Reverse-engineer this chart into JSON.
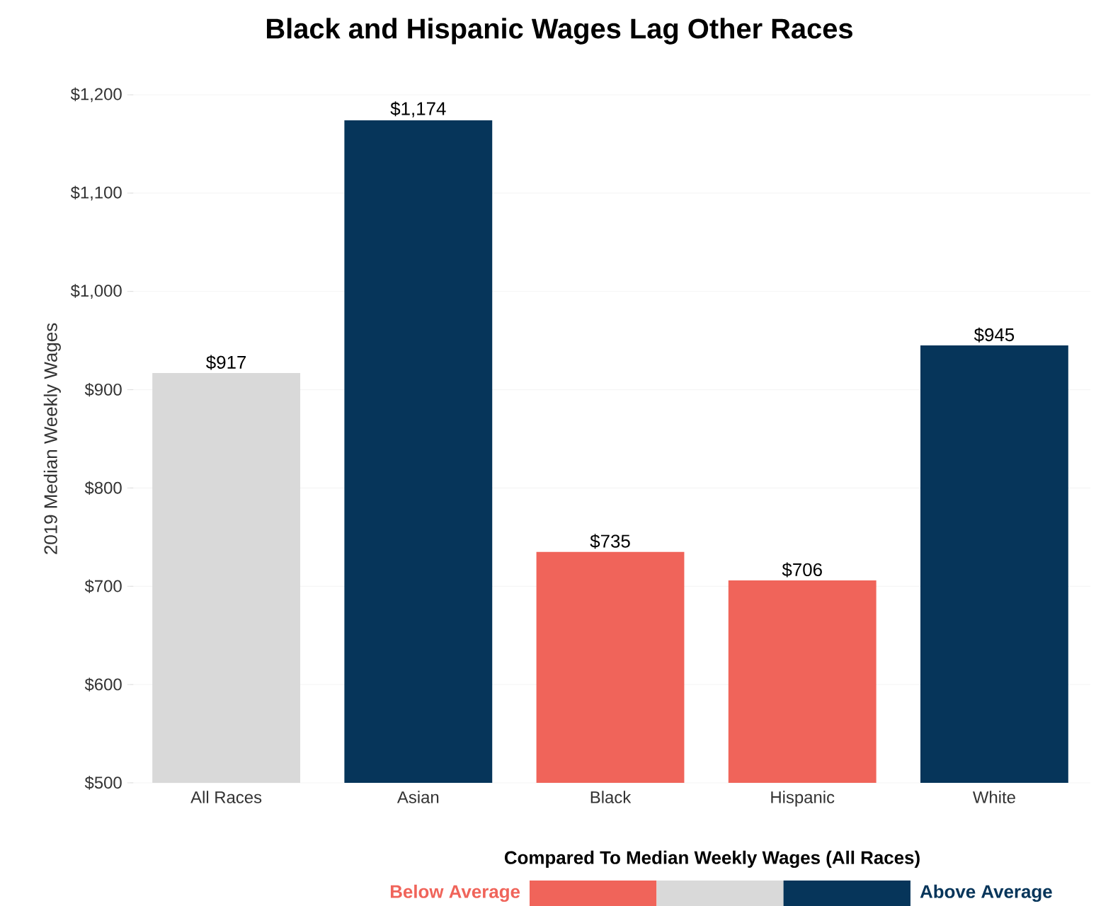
{
  "chart_data": {
    "type": "bar",
    "title": "Black and Hispanic Wages Lag Other Races",
    "ylabel": "2019 Median Weekly Wages",
    "legend_title": "Compared To Median Weekly Wages (All Races)",
    "categories": [
      "All Races",
      "Asian",
      "Black",
      "Hispanic",
      "White"
    ],
    "series": [
      {
        "name": "Below Average",
        "color": "#f0645a",
        "values": [
          null,
          null,
          735,
          706,
          null
        ],
        "value_labels": [
          null,
          null,
          "$735",
          "$706",
          null
        ]
      },
      {
        "color": "#d9d9d9",
        "values": [
          917,
          null,
          null,
          null,
          null
        ],
        "value_labels": [
          "$917",
          null,
          null,
          null,
          null
        ]
      },
      {
        "name": "Above Average",
        "color": "#06355a",
        "values": [
          null,
          1174,
          null,
          null,
          945
        ],
        "value_labels": [
          null,
          "$1,174",
          null,
          null,
          "$945"
        ]
      }
    ],
    "ylim": [
      500,
      1200
    ],
    "yticks": [
      {
        "value": 500,
        "label": "$500"
      },
      {
        "value": 600,
        "label": "$600"
      },
      {
        "value": 700,
        "label": "$700"
      },
      {
        "value": 800,
        "label": "$800"
      },
      {
        "value": 900,
        "label": "$900"
      },
      {
        "value": 1000,
        "label": "$1,000"
      },
      {
        "value": 1100,
        "label": "$1,100"
      },
      {
        "value": 1200,
        "label": "$1,200"
      }
    ],
    "grid": "y",
    "legend": "bottom"
  }
}
